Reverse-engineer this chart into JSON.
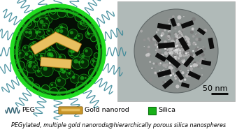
{
  "background_color": "#ffffff",
  "title_text": "PEGylated, multiple gold nanorods@hierarchically porous silica nanospheres",
  "scale_bar_text": "50 nm",
  "fig_width": 3.39,
  "fig_height": 1.89,
  "dpi": 100,
  "gold_color": "#c8962a",
  "gold_highlight": "#e8c060",
  "gold_dark": "#7a5808",
  "peg_color": "#4a9aaa",
  "peg_color2": "#2a7a8a",
  "sphere_bright_green": "#22dd22",
  "sphere_mid_green": "#18b018",
  "sphere_dark_green": "#0a7010",
  "sphere_very_dark": "#052805",
  "sphere_black": "#050f05",
  "sphere_pore_bright": "#20c820",
  "sphere_pore_mid": "#18a018",
  "tem_bg": "#b0bab8",
  "tem_sphere_edge": "#707878",
  "tem_sphere_inner": "#909898",
  "title_fontsize": 5.8,
  "legend_fontsize": 6.8,
  "scalebar_fontsize": 8.0,
  "peg_squiggle_color": "#3a8898",
  "legend_squiggle_color": "#3a6878"
}
